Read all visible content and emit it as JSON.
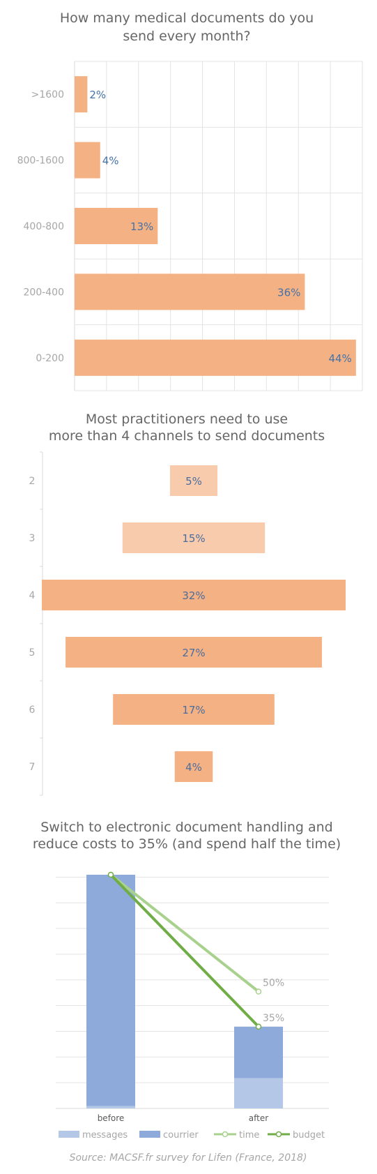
{
  "colors": {
    "orange": "#f4b183",
    "orange_light": "#f8cbad",
    "blue": "#8eaadb",
    "blue_light": "#b4c7e7",
    "green_light": "#a9d18e",
    "green": "#70ad47",
    "label_blue": "#4472c4"
  },
  "source": "Source: MACSF.fr survey for Lifen (France, 2018)",
  "chart_data": [
    {
      "type": "bar",
      "orientation": "horizontal",
      "title": "How many medical documents do you send every month?",
      "title_lines": [
        "How many medical documents do you",
        "send every month?"
      ],
      "categories": [
        ">1600",
        "800-1600",
        "400-800",
        "200-400",
        "0-200"
      ],
      "values": [
        2,
        4,
        13,
        36,
        44
      ],
      "value_labels": [
        "2%",
        "4%",
        "13%",
        "36%",
        "44%"
      ],
      "xlim": [
        0,
        45
      ],
      "grid": true
    },
    {
      "type": "bar",
      "orientation": "horizontal",
      "style": "funnel",
      "title": "Most practitioners need to use more than 4 channels to send documents",
      "title_lines": [
        "Most practitioners need to use",
        "more than 4 channels to send documents"
      ],
      "categories": [
        "2",
        "3",
        "4",
        "5",
        "6",
        "7"
      ],
      "values": [
        5,
        15,
        32,
        27,
        17,
        4
      ],
      "value_labels": [
        "5%",
        "15%",
        "32%",
        "27%",
        "17%",
        "4%"
      ],
      "highlight": [
        false,
        false,
        true,
        true,
        true,
        true
      ]
    },
    {
      "type": "bar",
      "stacked": true,
      "title": "Switch to electronic document handling and reduce costs to 35% (and spend half the time)",
      "title_lines": [
        "Switch to electronic document handling and",
        "reduce costs to 35% (and spend half the time)"
      ],
      "categories": [
        "before",
        "after"
      ],
      "series": [
        {
          "name": "messages",
          "type": "bar",
          "values": [
            1,
            13
          ]
        },
        {
          "name": "courrier",
          "type": "bar",
          "values": [
            99,
            22
          ]
        },
        {
          "name": "time",
          "type": "line",
          "values": [
            100,
            50
          ],
          "labels": [
            "",
            "50%"
          ]
        },
        {
          "name": "budget",
          "type": "line",
          "values": [
            100,
            35
          ],
          "labels": [
            "",
            "35%"
          ]
        }
      ],
      "ylim": [
        0,
        100
      ],
      "grid": true,
      "legend": "bottom"
    }
  ]
}
